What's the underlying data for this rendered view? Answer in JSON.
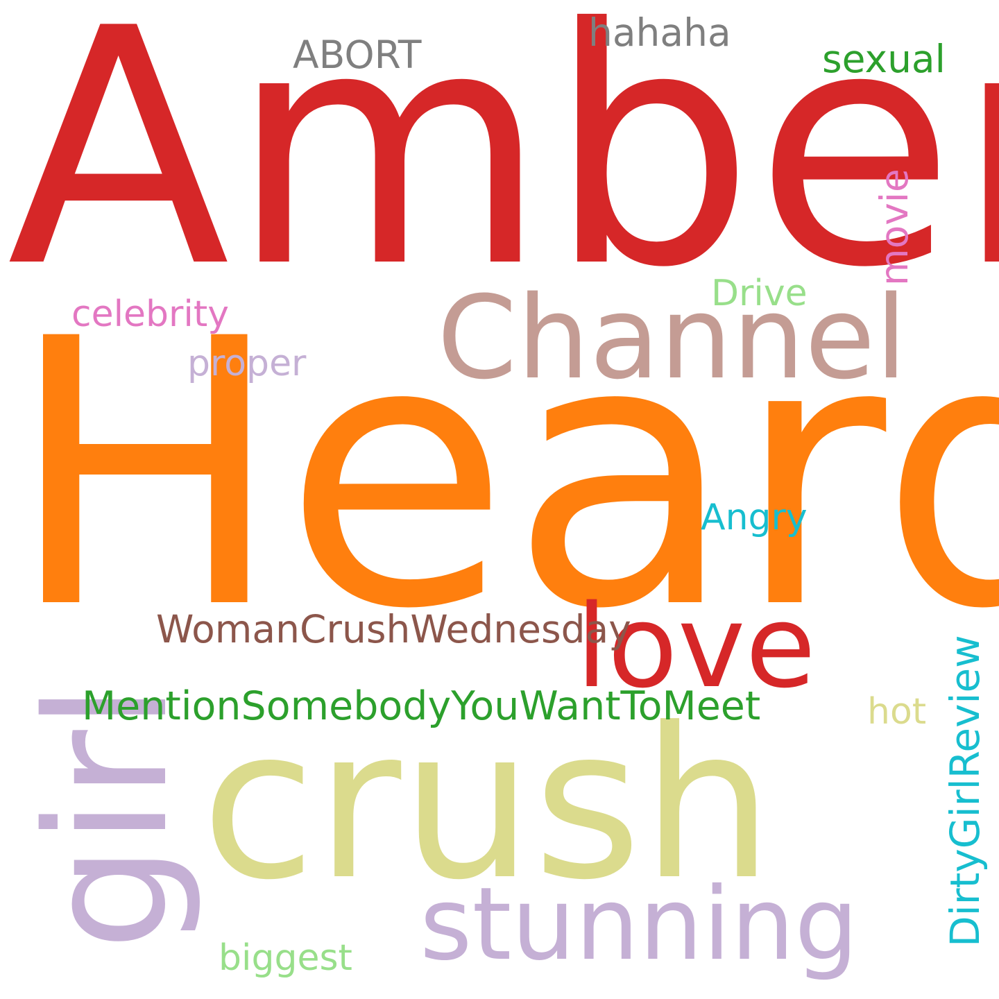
{
  "words": [
    {
      "text": "Amber",
      "color": "#d62728"
    },
    {
      "text": "Heard",
      "color": "#ff7f0e"
    },
    {
      "text": "crush",
      "color": "#dbdb8d"
    },
    {
      "text": "Channel",
      "color": "#c49c94"
    },
    {
      "text": "girl",
      "color": "#c5b0d5"
    },
    {
      "text": "love",
      "color": "#d62728"
    },
    {
      "text": "stunning",
      "color": "#c5b0d5"
    },
    {
      "text": "WomanCrushWednesday",
      "color": "#8c564b"
    },
    {
      "text": "MentionSomebodyYouWantToMeet",
      "color": "#2ca02c"
    },
    {
      "text": "DirtyGirlReview",
      "color": "#17becf"
    },
    {
      "text": "hahaha",
      "color": "#7f7f7f"
    },
    {
      "text": "ABORT",
      "color": "#7f7f7f"
    },
    {
      "text": "sexual",
      "color": "#2ca02c"
    },
    {
      "text": "movie",
      "color": "#e377c2"
    },
    {
      "text": "Drive",
      "color": "#98df8a"
    },
    {
      "text": "celebrity",
      "color": "#e377c2"
    },
    {
      "text": "proper",
      "color": "#c5b0d5"
    },
    {
      "text": "Angry",
      "color": "#17becf"
    },
    {
      "text": "hot",
      "color": "#dbdb8d"
    },
    {
      "text": "biggest",
      "color": "#98df8a"
    }
  ]
}
